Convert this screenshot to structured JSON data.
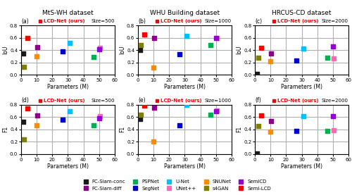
{
  "chart_data": [
    {
      "type": "scatter",
      "title": "MtS-WH dataset",
      "x_label": "Parameters (M)",
      "y_label": "IoU",
      "xlim": [
        0,
        60
      ],
      "ylim": [
        0.0,
        0.8
      ],
      "xticks": [
        0,
        10,
        20,
        30,
        40,
        50,
        60
      ],
      "yticks": [
        0.0,
        0.2,
        0.4,
        0.6,
        0.8
      ],
      "grid": true,
      "marker": "square",
      "legend": "lower center",
      "annotations": [
        {
          "text": "(a)"
        },
        {
          "text": "LCD-Net (ours)",
          "color": "#ff0000",
          "marker": "square"
        },
        {
          "text": "Size=500"
        }
      ],
      "series": [
        {
          "name": "FC-Siam-conc",
          "color": "#1a1a1a",
          "x": [
            1.5
          ],
          "values": [
            0.35
          ]
        },
        {
          "name": "FC-Siam-diff",
          "color": "#8b008b",
          "x": [
            10.5
          ],
          "values": [
            0.45
          ]
        },
        {
          "name": "PSPNet",
          "color": "#00b050",
          "x": [
            46.5
          ],
          "values": [
            0.29
          ]
        },
        {
          "name": "SegNet",
          "color": "#0000cd",
          "x": [
            26.5
          ],
          "values": [
            0.38
          ]
        },
        {
          "name": "U-Net",
          "color": "#00bfff",
          "x": [
            31.0
          ],
          "values": [
            0.52
          ]
        },
        {
          "name": "UNet++",
          "color": "#ff69b4",
          "x": [
            50.5
          ],
          "values": [
            0.44
          ]
        },
        {
          "name": "SNUNet",
          "color": "#ff8c00",
          "x": [
            10.0
          ],
          "values": [
            0.3
          ]
        },
        {
          "name": "s4GAN",
          "color": "#808000",
          "x": [
            2.0
          ],
          "values": [
            0.13
          ]
        },
        {
          "name": "SemiCD",
          "color": "#9400d3",
          "x": [
            50.0
          ],
          "values": [
            0.41
          ]
        },
        {
          "name": "Semi-LCD",
          "color": "#ff0000",
          "x": [
            4.0
          ],
          "values": [
            0.6
          ]
        }
      ]
    },
    {
      "type": "scatter",
      "title": "WHU Building dataset",
      "x_label": "Parameters (M)",
      "y_label": "IoU",
      "xlim": [
        0,
        60
      ],
      "ylim": [
        0.0,
        0.8
      ],
      "xticks": [
        0,
        10,
        20,
        30,
        40,
        50,
        60
      ],
      "yticks": [
        0.0,
        0.2,
        0.4,
        0.6,
        0.8
      ],
      "grid": true,
      "marker": "square",
      "legend": "lower center",
      "annotations": [
        {
          "text": "(b)"
        },
        {
          "text": "LCD-Net (ours)",
          "color": "#ff0000",
          "marker": "square"
        },
        {
          "text": "Size=1000"
        }
      ],
      "series": [
        {
          "name": "FC-Siam-conc",
          "color": "#1a1a1a",
          "x": [
            1.5
          ],
          "values": [
            0.4
          ]
        },
        {
          "name": "FC-Siam-diff",
          "color": "#8b008b",
          "x": [
            10.5
          ],
          "values": [
            0.6
          ]
        },
        {
          "name": "PSPNet",
          "color": "#00b050",
          "x": [
            46.5
          ],
          "values": [
            0.48
          ]
        },
        {
          "name": "SegNet",
          "color": "#0000cd",
          "x": [
            26.5
          ],
          "values": [
            0.33
          ]
        },
        {
          "name": "U-Net",
          "color": "#00bfff",
          "x": [
            31.0
          ],
          "values": [
            0.63
          ]
        },
        {
          "name": "UNet++",
          "color": "#ff69b4",
          "x": [
            50.5
          ],
          "values": [
            0.59
          ]
        },
        {
          "name": "SNUNet",
          "color": "#ff8c00",
          "x": [
            10.0
          ],
          "values": [
            0.12
          ]
        },
        {
          "name": "s4GAN",
          "color": "#808000",
          "x": [
            2.0
          ],
          "values": [
            0.48
          ]
        },
        {
          "name": "SemiCD",
          "color": "#9400d3",
          "x": [
            50.0
          ],
          "values": [
            0.59
          ]
        },
        {
          "name": "Semi-LCD",
          "color": "#ff0000",
          "x": [
            4.0
          ],
          "values": [
            0.65
          ]
        }
      ]
    },
    {
      "type": "scatter",
      "title": "HRCUS-CD dataset",
      "x_label": "Parameters (M)",
      "y_label": "IoU",
      "xlim": [
        0,
        60
      ],
      "ylim": [
        0.0,
        0.8
      ],
      "xticks": [
        0,
        10,
        20,
        30,
        40,
        50,
        60
      ],
      "yticks": [
        0.0,
        0.2,
        0.4,
        0.6,
        0.8
      ],
      "grid": true,
      "marker": "square",
      "legend": "lower center",
      "annotations": [
        {
          "text": "(c)"
        },
        {
          "text": "LCD-Net (ours)",
          "color": "#ff0000",
          "marker": "square"
        },
        {
          "text": "Size=2000"
        }
      ],
      "series": [
        {
          "name": "FC-Siam-conc",
          "color": "#1a1a1a",
          "x": [
            1.5
          ],
          "values": [
            0.01
          ]
        },
        {
          "name": "FC-Siam-diff",
          "color": "#8b008b",
          "x": [
            10.5
          ],
          "values": [
            0.34
          ]
        },
        {
          "name": "PSPNet",
          "color": "#00b050",
          "x": [
            46.5
          ],
          "values": [
            0.28
          ]
        },
        {
          "name": "SegNet",
          "color": "#0000cd",
          "x": [
            26.5
          ],
          "values": [
            0.23
          ]
        },
        {
          "name": "U-Net",
          "color": "#00bfff",
          "x": [
            31.0
          ],
          "values": [
            0.43
          ]
        },
        {
          "name": "UNet++",
          "color": "#ff69b4",
          "x": [
            50.5
          ],
          "values": [
            0.27
          ]
        },
        {
          "name": "SNUNet",
          "color": "#ff8c00",
          "x": [
            10.0
          ],
          "values": [
            0.22
          ]
        },
        {
          "name": "s4GAN",
          "color": "#808000",
          "x": [
            2.0
          ],
          "values": [
            0.28
          ]
        },
        {
          "name": "SemiCD",
          "color": "#9400d3",
          "x": [
            50.0
          ],
          "values": [
            0.46
          ]
        },
        {
          "name": "Semi-LCD",
          "color": "#ff0000",
          "x": [
            4.0
          ],
          "values": [
            0.44
          ]
        }
      ]
    },
    {
      "type": "scatter",
      "x_label": "Parameters (M)",
      "y_label": "F1",
      "xlim": [
        0,
        60
      ],
      "ylim": [
        0.0,
        0.8
      ],
      "xticks": [
        0,
        10,
        20,
        30,
        40,
        50,
        60
      ],
      "yticks": [
        0.0,
        0.2,
        0.4,
        0.6,
        0.8
      ],
      "grid": true,
      "marker": "square",
      "legend": "lower center",
      "annotations": [
        {
          "text": "(d)"
        },
        {
          "text": "LCD-Net (ours)",
          "color": "#ff0000",
          "marker": "square"
        },
        {
          "text": "Size=500"
        }
      ],
      "series": [
        {
          "name": "FC-Siam-conc",
          "color": "#1a1a1a",
          "x": [
            1.5
          ],
          "values": [
            0.52
          ]
        },
        {
          "name": "FC-Siam-diff",
          "color": "#8b008b",
          "x": [
            10.5
          ],
          "values": [
            0.62
          ]
        },
        {
          "name": "PSPNet",
          "color": "#00b050",
          "x": [
            46.5
          ],
          "values": [
            0.47
          ]
        },
        {
          "name": "SegNet",
          "color": "#0000cd",
          "x": [
            26.5
          ],
          "values": [
            0.55
          ]
        },
        {
          "name": "U-Net",
          "color": "#00bfff",
          "x": [
            31.0
          ],
          "values": [
            0.69
          ]
        },
        {
          "name": "UNet++",
          "color": "#ff69b4",
          "x": [
            50.5
          ],
          "values": [
            0.61
          ]
        },
        {
          "name": "SNUNet",
          "color": "#ff8c00",
          "x": [
            10.0
          ],
          "values": [
            0.46
          ]
        },
        {
          "name": "s4GAN",
          "color": "#808000",
          "x": [
            2.0
          ],
          "values": [
            0.24
          ]
        },
        {
          "name": "SemiCD",
          "color": "#9400d3",
          "x": [
            50.0
          ],
          "values": [
            0.58
          ]
        },
        {
          "name": "Semi-LCD",
          "color": "#ff0000",
          "x": [
            4.0
          ],
          "values": [
            0.74
          ]
        }
      ]
    },
    {
      "type": "scatter",
      "x_label": "Parameters (M)",
      "y_label": "F1",
      "xlim": [
        0,
        60
      ],
      "ylim": [
        0.0,
        0.8
      ],
      "xticks": [
        0,
        10,
        20,
        30,
        40,
        50,
        60
      ],
      "yticks": [
        0.0,
        0.2,
        0.4,
        0.6,
        0.8
      ],
      "grid": true,
      "marker": "square",
      "legend": "lower center",
      "annotations": [
        {
          "text": "(e)"
        },
        {
          "text": "LCD-Net (ours)",
          "color": "#ff0000",
          "marker": "square"
        },
        {
          "text": "Size=1000"
        }
      ],
      "series": [
        {
          "name": "FC-Siam-conc",
          "color": "#1a1a1a",
          "x": [
            1.5
          ],
          "values": [
            0.57
          ]
        },
        {
          "name": "FC-Siam-diff",
          "color": "#8b008b",
          "x": [
            10.5
          ],
          "values": [
            0.75
          ]
        },
        {
          "name": "PSPNet",
          "color": "#00b050",
          "x": [
            46.5
          ],
          "values": [
            0.63
          ]
        },
        {
          "name": "SegNet",
          "color": "#0000cd",
          "x": [
            26.5
          ],
          "values": [
            0.47
          ]
        },
        {
          "name": "U-Net",
          "color": "#00bfff",
          "x": [
            31.0
          ],
          "values": [
            0.79
          ]
        },
        {
          "name": "UNet++",
          "color": "#ff69b4",
          "x": [
            50.5
          ],
          "values": [
            0.7
          ]
        },
        {
          "name": "SNUNet",
          "color": "#ff8c00",
          "x": [
            10.0
          ],
          "values": [
            0.2
          ]
        },
        {
          "name": "s4GAN",
          "color": "#808000",
          "x": [
            2.0
          ],
          "values": [
            0.63
          ]
        },
        {
          "name": "SemiCD",
          "color": "#9400d3",
          "x": [
            50.0
          ],
          "values": [
            0.69
          ]
        },
        {
          "name": "Semi-LCD",
          "color": "#ff0000",
          "x": [
            4.0
          ],
          "values": [
            0.78
          ]
        }
      ]
    },
    {
      "type": "scatter",
      "x_label": "Parameters (M)",
      "y_label": "F1",
      "xlim": [
        0,
        60
      ],
      "ylim": [
        0.0,
        0.8
      ],
      "xticks": [
        0,
        10,
        20,
        30,
        40,
        50,
        60
      ],
      "yticks": [
        0.0,
        0.2,
        0.4,
        0.6,
        0.8
      ],
      "grid": true,
      "marker": "square",
      "legend": "lower center",
      "annotations": [
        {
          "text": "(f)"
        },
        {
          "text": "LCD-Net (ours)",
          "color": "#ff0000",
          "marker": "square"
        },
        {
          "text": "Size=2000"
        }
      ],
      "series": [
        {
          "name": "FC-Siam-conc",
          "color": "#1a1a1a",
          "x": [
            1.5
          ],
          "values": [
            0.01
          ]
        },
        {
          "name": "FC-Siam-diff",
          "color": "#8b008b",
          "x": [
            10.5
          ],
          "values": [
            0.53
          ]
        },
        {
          "name": "PSPNet",
          "color": "#00b050",
          "x": [
            46.5
          ],
          "values": [
            0.37
          ]
        },
        {
          "name": "SegNet",
          "color": "#0000cd",
          "x": [
            26.5
          ],
          "values": [
            0.37
          ]
        },
        {
          "name": "U-Net",
          "color": "#00bfff",
          "x": [
            31.0
          ],
          "values": [
            0.61
          ]
        },
        {
          "name": "UNet++",
          "color": "#ff69b4",
          "x": [
            50.5
          ],
          "values": [
            0.38
          ]
        },
        {
          "name": "SNUNet",
          "color": "#ff8c00",
          "x": [
            10.0
          ],
          "values": [
            0.36
          ]
        },
        {
          "name": "s4GAN",
          "color": "#808000",
          "x": [
            2.0
          ],
          "values": [
            0.45
          ]
        },
        {
          "name": "SemiCD",
          "color": "#9400d3",
          "x": [
            50.0
          ],
          "values": [
            0.61
          ]
        },
        {
          "name": "Semi-LCD",
          "color": "#ff0000",
          "x": [
            4.0
          ],
          "values": [
            0.62
          ]
        }
      ]
    }
  ]
}
